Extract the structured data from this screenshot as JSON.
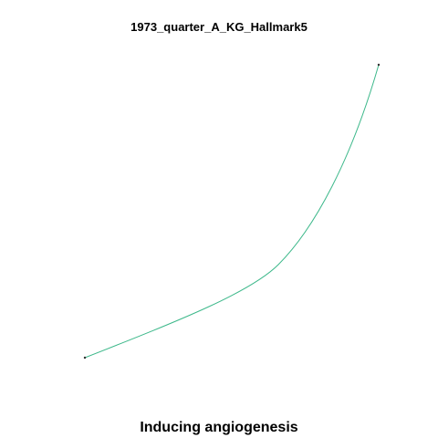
{
  "header": {
    "title": "1973_quarter_A_KG_Hallmark5"
  },
  "footer": {
    "caption": "Inducing angiogenesis"
  },
  "graph": {
    "nodes": [
      {
        "id": "start"
      },
      {
        "id": "end"
      }
    ],
    "edges": [
      {
        "from": "start",
        "to": "end"
      }
    ]
  },
  "colors": {
    "edge": "#3cb88a",
    "node": "#333333",
    "background": "#ffffff",
    "text": "#000000"
  }
}
